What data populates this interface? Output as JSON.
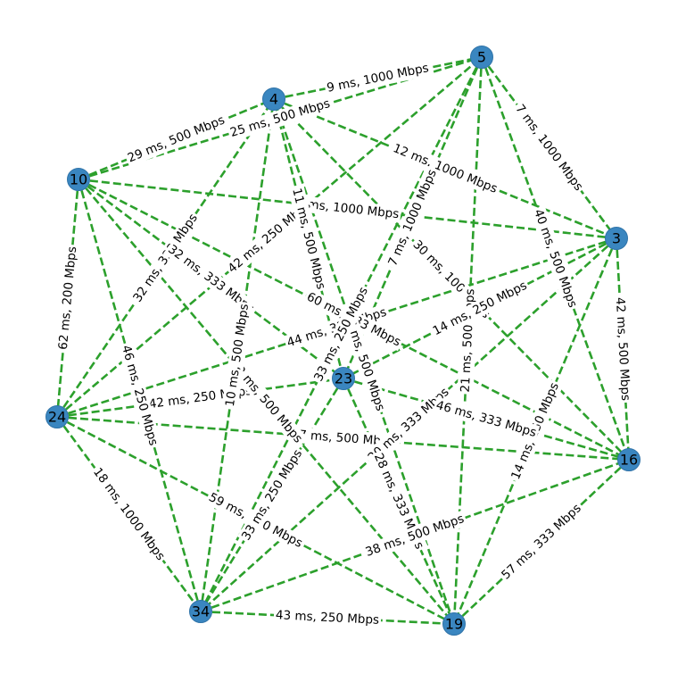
{
  "graph": {
    "colors": {
      "edge": "#2ca02c",
      "node": "#3a86c0",
      "node_stroke": "#2f73a8",
      "text": "#000000"
    },
    "nodes": [
      {
        "id": "5",
        "label": "5"
      },
      {
        "id": "4",
        "label": "4"
      },
      {
        "id": "10",
        "label": "10"
      },
      {
        "id": "3",
        "label": "3"
      },
      {
        "id": "23",
        "label": "23"
      },
      {
        "id": "24",
        "label": "24"
      },
      {
        "id": "16",
        "label": "16"
      },
      {
        "id": "34",
        "label": "34"
      },
      {
        "id": "19",
        "label": "19"
      }
    ],
    "edges": [
      {
        "source": "4",
        "target": "5",
        "label": "9 ms, 1000 Mbps"
      },
      {
        "source": "10",
        "target": "4",
        "label": "29 ms, 500 Mbps"
      },
      {
        "source": "10",
        "target": "5",
        "label": "25 ms, 500 Mbps"
      },
      {
        "source": "5",
        "target": "3",
        "label": "7 ms, 1000 Mbps"
      },
      {
        "source": "4",
        "target": "3",
        "label": "12 ms, 1000 Mbps"
      },
      {
        "source": "10",
        "target": "3",
        "label": "5 ms, 1000 Mbps"
      },
      {
        "source": "10",
        "target": "24",
        "label": "62 ms, 200 Mbps"
      },
      {
        "source": "3",
        "target": "16",
        "label": "42 ms, 500 Mbps"
      },
      {
        "source": "24",
        "target": "34",
        "label": "18 ms, 1000 Mbps"
      },
      {
        "source": "34",
        "target": "19",
        "label": "43 ms, 250 Mbps"
      },
      {
        "source": "19",
        "target": "16",
        "label": "57 ms, 333 Mbps"
      },
      {
        "source": "24",
        "target": "5",
        "label": "42 ms, 250 Mbps"
      },
      {
        "source": "24",
        "target": "23",
        "label": "42 ms, 250 Mbps"
      },
      {
        "source": "24",
        "target": "16",
        "label": "57 ms, 500 Mbps"
      },
      {
        "source": "24",
        "target": "19",
        "label": "59 ms, 250 Mbps"
      },
      {
        "source": "24",
        "target": "3",
        "label": "44 ms, 333 Mbps"
      },
      {
        "source": "24",
        "target": "4",
        "label": "32 ms, 333 Mbps"
      },
      {
        "source": "10",
        "target": "34",
        "label": "46 ms, 250 Mbps"
      },
      {
        "source": "10",
        "target": "23",
        "label": "32 ms, 333 Mbps"
      },
      {
        "source": "10",
        "target": "16",
        "label": "60 ms, 333 Mbps"
      },
      {
        "source": "10",
        "target": "19",
        "label": "32 ms, 500 Mbps"
      },
      {
        "source": "4",
        "target": "23",
        "label": "11 ms, 500 Mbps"
      },
      {
        "source": "4",
        "target": "19",
        "label": "26 ms, 500 Mbps"
      },
      {
        "source": "4",
        "target": "34",
        "label": "10 ms, 500 Mbps"
      },
      {
        "source": "4",
        "target": "16",
        "label": "30 ms, 100 Mbps"
      },
      {
        "source": "5",
        "target": "23",
        "label": "7 ms, 1000 Mbps"
      },
      {
        "source": "5",
        "target": "16",
        "label": "40 ms, 500 Mbps"
      },
      {
        "source": "5",
        "target": "19",
        "label": "21 ms, 500 Mbps"
      },
      {
        "source": "5",
        "target": "34",
        "label": "33 ms, 250 Mbps"
      },
      {
        "source": "3",
        "target": "23",
        "label": "14 ms, 250 Mbps"
      },
      {
        "source": "3",
        "target": "19",
        "label": "14 ms, 250 Mbps"
      },
      {
        "source": "3",
        "target": "34",
        "label": "20 ms, 333 Mbps"
      },
      {
        "source": "23",
        "target": "16",
        "label": "46 ms, 333 Mbps"
      },
      {
        "source": "23",
        "target": "19",
        "label": "28 ms, 333 Mbps"
      },
      {
        "source": "23",
        "target": "34",
        "label": "33 ms, 250 Mbps"
      },
      {
        "source": "34",
        "target": "16",
        "label": "38 ms, 500 Mbps"
      }
    ]
  }
}
